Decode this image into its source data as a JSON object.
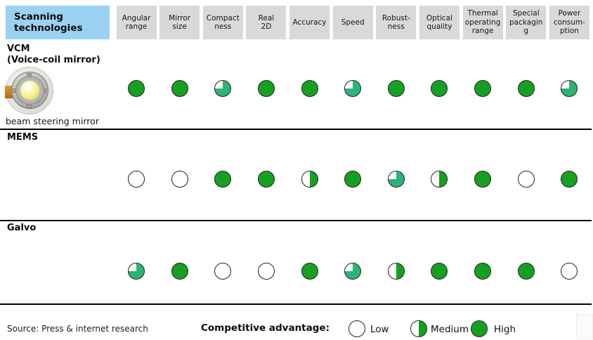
{
  "colors": {
    "blue_header": "#9bd2f2",
    "gray_header": "#d9d9d9",
    "green_high": "#16a022",
    "green_three_quarter": "#2db377",
    "line": "#000000"
  },
  "footer": {
    "source": "Source: Press & internet research"
  },
  "chart_data": {
    "type": "table",
    "title": "Scanning\ntechnologies",
    "columns": [
      "Angular\nrange",
      "Mirror\nsize",
      "Compact\nness",
      "Real\n2D",
      "Accuracy",
      "Speed",
      "Robust-\nness",
      "Optical\nquality",
      "Thermal\noperating\nrange",
      "Special\npackagin\ng",
      "Power\nconsum-\nption"
    ],
    "scale_values": {
      "low": 0,
      "medium": 0.5,
      "three_quarter": 0.75,
      "high": 1
    },
    "rows": [
      {
        "name": "VCM\n(Voice-coil mirror)",
        "caption": "beam steering mirror",
        "ratings": [
          "high",
          "high",
          "three_quarter",
          "high",
          "high",
          "three_quarter",
          "high",
          "high",
          "high",
          "high",
          "three_quarter"
        ]
      },
      {
        "name": "MEMS",
        "ratings": [
          "low",
          "low",
          "high",
          "high",
          "medium",
          "high",
          "three_quarter",
          "medium",
          "high",
          "low",
          "high"
        ]
      },
      {
        "name": "Galvo",
        "ratings": [
          "three_quarter",
          "high",
          "low",
          "low",
          "high",
          "three_quarter",
          "medium",
          "high",
          "high",
          "high",
          "low"
        ]
      }
    ],
    "legend": {
      "label": "Competitive advantage:",
      "items": [
        {
          "label": "Low",
          "value": "low"
        },
        {
          "label": "Medium",
          "value": "medium"
        },
        {
          "label": "High",
          "value": "high"
        }
      ]
    }
  }
}
